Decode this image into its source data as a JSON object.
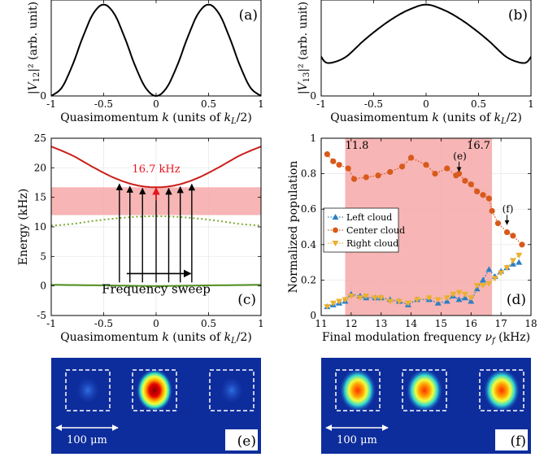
{
  "colors": {
    "band_curve": "#000000",
    "upper_band": "#cc1f1a",
    "middle_band": "#7aab2e",
    "lower_band": "#4f8f1d",
    "highlight": "#f6a8a8",
    "red_arrow": "#e8141b",
    "left_cloud": "#2a7fc4",
    "center_cloud": "#d85a1a",
    "right_cloud": "#eab030",
    "image_bg": "#0e2d9c"
  },
  "chart_data": [
    {
      "id": "a",
      "type": "line",
      "panel_label": "(a)",
      "xlabel_main": "Quasimomentum ",
      "xlabel_var": "k",
      "xlabel_units": " (units of ",
      "xlabel_units_var": "k",
      "xlabel_units_sub": "L",
      "xlabel_units_end": "/2)",
      "ylabel_var": "|V",
      "ylabel_sub": "12",
      "ylabel_end": "|² (arb. unit)",
      "xlim": [
        -1,
        1
      ],
      "ylim": [
        0,
        1.05
      ],
      "xticks": [
        "-1",
        "-0.5",
        "0",
        "0.5",
        "1"
      ],
      "xtick_values": [
        -1,
        -0.5,
        0,
        0.5,
        1
      ],
      "yticks": [
        "0"
      ],
      "ytick_values": [
        0
      ],
      "series": [
        {
          "values": [
            [
              -1,
              0
            ],
            [
              -0.9,
              0.09
            ],
            [
              -0.8,
              0.33
            ],
            [
              -0.7,
              0.64
            ],
            [
              -0.6,
              0.9
            ],
            [
              -0.5,
              1.0
            ],
            [
              -0.4,
              0.9
            ],
            [
              -0.3,
              0.64
            ],
            [
              -0.2,
              0.33
            ],
            [
              -0.1,
              0.09
            ],
            [
              0,
              0
            ],
            [
              0.1,
              0.09
            ],
            [
              0.2,
              0.33
            ],
            [
              0.3,
              0.64
            ],
            [
              0.4,
              0.9
            ],
            [
              0.5,
              1.0
            ],
            [
              0.6,
              0.9
            ],
            [
              0.7,
              0.64
            ],
            [
              0.8,
              0.33
            ],
            [
              0.9,
              0.09
            ],
            [
              1,
              0
            ]
          ]
        }
      ]
    },
    {
      "id": "b",
      "type": "line",
      "panel_label": "(b)",
      "xlabel_main": "Quasimomentum ",
      "xlabel_var": "k",
      "xlabel_units": " (units of ",
      "xlabel_units_var": "k",
      "xlabel_units_sub": "L",
      "xlabel_units_end": "/2)",
      "ylabel_var": "|V",
      "ylabel_sub": "13",
      "ylabel_end": "|² (arb. unit)",
      "xlim": [
        -1,
        1
      ],
      "ylim": [
        0,
        1.05
      ],
      "xticks": [
        "-1",
        "-0.5",
        "0",
        "0.5",
        "1"
      ],
      "xtick_values": [
        -1,
        -0.5,
        0,
        0.5,
        1
      ],
      "yticks": [
        "0"
      ],
      "ytick_values": [
        0
      ],
      "series": [
        {
          "values": [
            [
              -1,
              0.43
            ],
            [
              -0.97,
              0.38
            ],
            [
              -0.93,
              0.36
            ],
            [
              -0.85,
              0.38
            ],
            [
              -0.75,
              0.44
            ],
            [
              -0.6,
              0.6
            ],
            [
              -0.45,
              0.74
            ],
            [
              -0.3,
              0.86
            ],
            [
              -0.15,
              0.95
            ],
            [
              0,
              1.0
            ],
            [
              0.15,
              0.95
            ],
            [
              0.3,
              0.86
            ],
            [
              0.45,
              0.74
            ],
            [
              0.6,
              0.6
            ],
            [
              0.75,
              0.44
            ],
            [
              0.85,
              0.38
            ],
            [
              0.93,
              0.36
            ],
            [
              0.97,
              0.38
            ],
            [
              1,
              0.43
            ]
          ]
        }
      ]
    },
    {
      "id": "c",
      "type": "line",
      "panel_label": "(c)",
      "xlabel_main": "Quasimomentum ",
      "xlabel_var": "k",
      "xlabel_units": " (units of ",
      "xlabel_units_var": "k",
      "xlabel_units_sub": "L",
      "xlabel_units_end": "/2)",
      "ylabel": "Energy (kHz)",
      "xlim": [
        -1,
        1
      ],
      "ylim": [
        -5,
        25
      ],
      "xticks": [
        "-1",
        "-0.5",
        "0",
        "0.5",
        "1"
      ],
      "xtick_values": [
        -1,
        -0.5,
        0,
        0.5,
        1
      ],
      "yticks": [
        "-5",
        "0",
        "5",
        "10",
        "15",
        "20",
        "25"
      ],
      "ytick_values": [
        -5,
        0,
        5,
        10,
        15,
        20,
        25
      ],
      "band_highlight": [
        12,
        16.7
      ],
      "annotation": "16.7 kHz",
      "annotation_at": [
        0,
        19.2
      ],
      "sweep_label": "Frequency sweep",
      "sweep_arrow_x": [
        -0.28,
        0.33
      ],
      "sweep_arrow_y": 2.1,
      "transition_arrows_k": [
        -0.35,
        -0.25,
        -0.13,
        0.12,
        0.23,
        0.34
      ],
      "series": [
        {
          "values": [
            [
              -1,
              23.6
            ],
            [
              -0.8,
              22.1
            ],
            [
              -0.6,
              20.1
            ],
            [
              -0.4,
              18.3
            ],
            [
              -0.2,
              17.1
            ],
            [
              0,
              16.7
            ],
            [
              0.2,
              17.1
            ],
            [
              0.4,
              18.3
            ],
            [
              0.6,
              20.1
            ],
            [
              0.8,
              22.1
            ],
            [
              1,
              23.6
            ]
          ]
        },
        {
          "values": [
            [
              -1,
              10.2
            ],
            [
              -0.8,
              10.5
            ],
            [
              -0.6,
              11.0
            ],
            [
              -0.4,
              11.4
            ],
            [
              -0.2,
              11.7
            ],
            [
              0,
              11.8
            ],
            [
              0.2,
              11.7
            ],
            [
              0.4,
              11.4
            ],
            [
              0.6,
              11.0
            ],
            [
              0.8,
              10.5
            ],
            [
              1,
              10.2
            ]
          ]
        },
        {
          "values": [
            [
              -1,
              0.2
            ],
            [
              -0.5,
              0.1
            ],
            [
              0,
              0.0
            ],
            [
              0.5,
              0.1
            ],
            [
              1,
              0.2
            ]
          ]
        }
      ]
    },
    {
      "id": "d",
      "type": "line",
      "panel_label": "(d)",
      "xlabel_main": "Final modulation frequency ",
      "xlabel_var": "ν",
      "xlabel_sub": "f",
      "xlabel_end": " (kHz)",
      "ylabel": "Normalized population",
      "xlim": [
        11,
        18
      ],
      "ylim": [
        0,
        1
      ],
      "xticks": [
        "11",
        "12",
        "13",
        "14",
        "15",
        "16",
        "17",
        "18"
      ],
      "xtick_values": [
        11,
        12,
        13,
        14,
        15,
        16,
        17,
        18
      ],
      "yticks": [
        "0",
        "0.2",
        "0.4",
        "0.6",
        "0.8",
        "1"
      ],
      "ytick_values": [
        0,
        0.2,
        0.4,
        0.6,
        0.8,
        1
      ],
      "highlight_range": [
        11.8,
        16.7
      ],
      "highlight_labels": [
        "11.8",
        "16.7"
      ],
      "annotations": [
        {
          "label": "(e)",
          "x": 15.6,
          "y": 0.79
        },
        {
          "label": "(f)",
          "x": 17.2,
          "y": 0.49
        }
      ],
      "legend_position": "center-left",
      "series": [
        {
          "name": "Left cloud",
          "x": [
            11.2,
            11.4,
            11.6,
            11.8,
            12.0,
            12.3,
            12.5,
            12.8,
            13.0,
            13.3,
            13.6,
            13.9,
            14.2,
            14.6,
            14.9,
            15.2,
            15.4,
            15.6,
            15.8,
            16.0,
            16.2,
            16.4,
            16.6,
            16.8,
            17.0,
            17.2,
            17.4,
            17.6
          ],
          "values": [
            0.05,
            0.06,
            0.07,
            0.08,
            0.12,
            0.11,
            0.1,
            0.1,
            0.1,
            0.09,
            0.08,
            0.06,
            0.09,
            0.09,
            0.07,
            0.08,
            0.11,
            0.09,
            0.1,
            0.08,
            0.15,
            0.2,
            0.26,
            0.22,
            0.25,
            0.27,
            0.29,
            0.3
          ]
        },
        {
          "name": "Center cloud",
          "x": [
            11.2,
            11.4,
            11.6,
            11.9,
            12.1,
            12.5,
            12.9,
            13.3,
            13.7,
            14.0,
            14.5,
            14.8,
            15.2,
            15.5,
            15.6,
            15.8,
            16.0,
            16.2,
            16.4,
            16.6,
            16.7,
            16.9,
            17.2,
            17.4,
            17.7
          ],
          "values": [
            0.91,
            0.87,
            0.85,
            0.83,
            0.77,
            0.78,
            0.79,
            0.81,
            0.84,
            0.89,
            0.85,
            0.8,
            0.83,
            0.79,
            0.8,
            0.76,
            0.74,
            0.7,
            0.68,
            0.66,
            0.59,
            0.52,
            0.47,
            0.45,
            0.4
          ]
        },
        {
          "name": "Right cloud",
          "x": [
            11.2,
            11.4,
            11.6,
            11.8,
            12.0,
            12.3,
            12.5,
            12.8,
            13.0,
            13.3,
            13.6,
            13.9,
            14.2,
            14.6,
            14.9,
            15.2,
            15.4,
            15.6,
            15.8,
            16.0,
            16.2,
            16.4,
            16.6,
            16.8,
            17.0,
            17.2,
            17.4,
            17.6
          ],
          "values": [
            0.05,
            0.07,
            0.08,
            0.09,
            0.11,
            0.1,
            0.11,
            0.1,
            0.1,
            0.08,
            0.08,
            0.07,
            0.09,
            0.1,
            0.09,
            0.1,
            0.12,
            0.13,
            0.12,
            0.1,
            0.17,
            0.17,
            0.18,
            0.21,
            0.24,
            0.27,
            0.31,
            0.34
          ]
        }
      ]
    }
  ],
  "images": [
    {
      "id": "e",
      "panel_label": "(e)",
      "scale_label": "100 μm",
      "clouds": [
        {
          "pos": "left",
          "intensity": 0.12
        },
        {
          "pos": "center",
          "intensity": 1.0
        },
        {
          "pos": "right",
          "intensity": 0.1
        }
      ]
    },
    {
      "id": "f",
      "panel_label": "(f)",
      "scale_label": "100 μm",
      "clouds": [
        {
          "pos": "left",
          "intensity": 0.75
        },
        {
          "pos": "center",
          "intensity": 0.85
        },
        {
          "pos": "right",
          "intensity": 0.8
        }
      ]
    }
  ]
}
